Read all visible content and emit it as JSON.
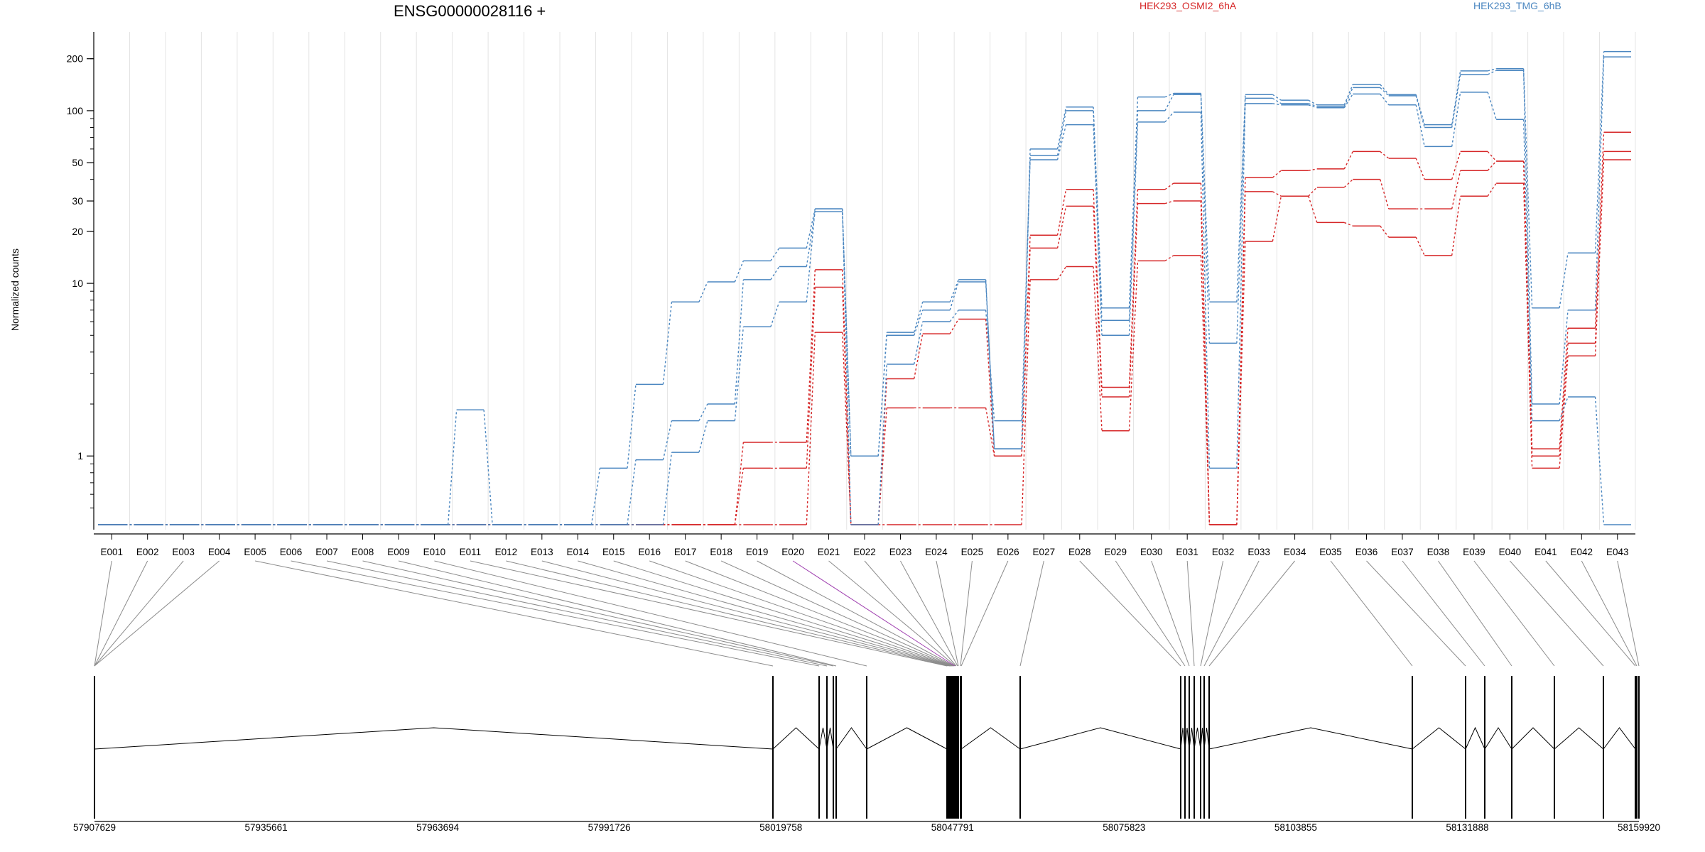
{
  "chart_data": {
    "type": "line",
    "title": "ENSG00000028116 +",
    "ylabel": "Normalized counts",
    "yscale": "log",
    "ylim": [
      0.4,
      260
    ],
    "yticks": [
      1,
      10,
      20,
      30,
      50,
      100,
      200
    ],
    "grid": "vertical",
    "legend_placement": "top",
    "categories": [
      "E001",
      "E002",
      "E003",
      "E004",
      "E005",
      "E006",
      "E007",
      "E008",
      "E009",
      "E010",
      "E011",
      "E012",
      "E013",
      "E014",
      "E015",
      "E016",
      "E017",
      "E018",
      "E019",
      "E020",
      "E021",
      "E022",
      "E023",
      "E024",
      "E025",
      "E026",
      "E027",
      "E028",
      "E029",
      "E030",
      "E031",
      "E032",
      "E033",
      "E034",
      "E035",
      "E036",
      "E037",
      "E038",
      "E039",
      "E040",
      "E041",
      "E042",
      "E043"
    ],
    "highlighted_exon": "E020",
    "series": [
      {
        "name": "HEK293_OSMI2_6hA",
        "color": "#d62728",
        "values": [
          0.4,
          0.4,
          0.4,
          0.4,
          0.4,
          0.4,
          0.4,
          0.4,
          0.4,
          0.4,
          0.4,
          0.4,
          0.4,
          0.4,
          0.4,
          0.4,
          0.4,
          0.4,
          1.2,
          1.2,
          12,
          0.4,
          2.8,
          5.1,
          6.2,
          1.0,
          19,
          35,
          2.5,
          35,
          38,
          0.4,
          41,
          45,
          46,
          58,
          53,
          40,
          58,
          51,
          1.1,
          5.5,
          75
        ]
      },
      {
        "name": "",
        "color": "#d62728",
        "values": [
          0.4,
          0.4,
          0.4,
          0.4,
          0.4,
          0.4,
          0.4,
          0.4,
          0.4,
          0.4,
          0.4,
          0.4,
          0.4,
          0.4,
          0.4,
          0.4,
          0.4,
          0.4,
          0.85,
          0.85,
          9.5,
          0.4,
          1.9,
          1.9,
          1.9,
          1.0,
          16,
          28,
          2.2,
          29,
          30,
          0.4,
          34,
          32,
          36,
          40,
          27,
          27,
          45,
          51,
          1.0,
          4.5,
          58
        ]
      },
      {
        "name": "",
        "color": "#d62728",
        "values": [
          0.4,
          0.4,
          0.4,
          0.4,
          0.4,
          0.4,
          0.4,
          0.4,
          0.4,
          0.4,
          0.4,
          0.4,
          0.4,
          0.4,
          0.4,
          0.4,
          0.4,
          0.4,
          0.4,
          0.4,
          5.2,
          0.4,
          0.4,
          0.4,
          0.4,
          0.4,
          10.5,
          12.5,
          1.4,
          13.5,
          14.5,
          0.4,
          17.5,
          32,
          22.5,
          21.5,
          18.5,
          14.5,
          32,
          38,
          0.85,
          3.8,
          52
        ]
      },
      {
        "name": "HEK293_TMG_6hB",
        "color": "#4a86c0",
        "values": [
          0.4,
          0.4,
          0.4,
          0.4,
          0.4,
          0.4,
          0.4,
          0.4,
          0.4,
          0.4,
          1.85,
          0.4,
          0.4,
          0.4,
          0.85,
          2.6,
          7.8,
          10.2,
          13.5,
          16,
          27,
          1.0,
          5.2,
          7.8,
          10.5,
          1.1,
          60,
          105,
          7.2,
          120,
          126,
          7.8,
          124,
          115,
          108,
          142,
          124,
          83,
          170,
          175,
          7.2,
          15,
          220
        ]
      },
      {
        "name": "",
        "color": "#4a86c0",
        "values": [
          0.4,
          0.4,
          0.4,
          0.4,
          0.4,
          0.4,
          0.4,
          0.4,
          0.4,
          0.4,
          0.4,
          0.4,
          0.4,
          0.4,
          0.4,
          0.95,
          1.6,
          2.0,
          10.5,
          12.5,
          26,
          1.0,
          5.0,
          7.0,
          10.2,
          1.1,
          55,
          100,
          6.1,
          100,
          124,
          4.5,
          118,
          110,
          106,
          136,
          122,
          80,
          162,
          171,
          2.0,
          7.0,
          205
        ]
      },
      {
        "name": "",
        "color": "#4a86c0",
        "values": [
          0.4,
          0.4,
          0.4,
          0.4,
          0.4,
          0.4,
          0.4,
          0.4,
          0.4,
          0.4,
          0.4,
          0.4,
          0.4,
          0.4,
          0.4,
          0.4,
          1.05,
          1.6,
          5.6,
          7.8,
          27,
          0.4,
          3.4,
          6.0,
          7.0,
          1.6,
          52,
          83,
          5.0,
          86,
          98,
          0.85,
          110,
          108,
          104,
          125,
          108,
          62,
          128,
          89,
          1.6,
          2.2,
          0.4
        ]
      }
    ],
    "gene_model": {
      "coordinate_ticks": [
        "57907629",
        "57935661",
        "57963694",
        "57991726",
        "58019758",
        "58047791",
        "58075823",
        "58103855",
        "58131888",
        "58159920"
      ]
    }
  }
}
